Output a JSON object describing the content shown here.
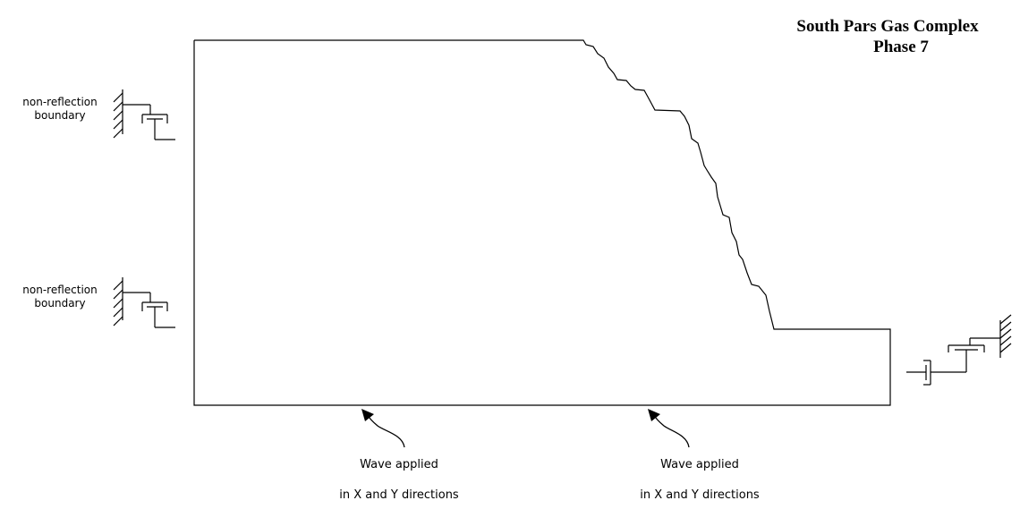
{
  "title": {
    "line1": "South Pars Gas Complex",
    "line2": "Phase 7"
  },
  "boundary_labels": [
    {
      "line1": "non-reflection",
      "line2": "boundary"
    },
    {
      "line1": "non-reflection",
      "line2": "boundary"
    }
  ],
  "wave_labels": [
    {
      "line1": "Wave applied",
      "line2": "in X and Y directions"
    },
    {
      "line1": "Wave applied",
      "line2": "in X and Y directions"
    }
  ],
  "colors": {
    "line": "#000000",
    "background": "#ffffff"
  }
}
